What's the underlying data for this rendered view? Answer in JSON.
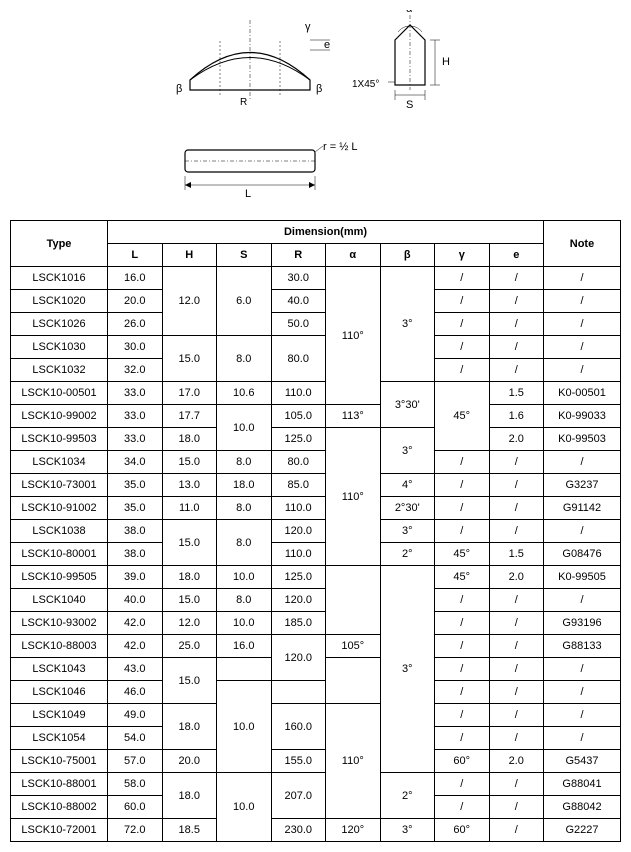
{
  "diagram": {
    "labels": {
      "gamma": "γ",
      "e": "e",
      "beta": "β",
      "R": "R",
      "alpha": "α",
      "H": "H",
      "S": "S",
      "chamfer": "1X45°",
      "r_formula": "r = ½ L",
      "L": "L"
    }
  },
  "table": {
    "header": {
      "type": "Type",
      "dimension": "Dimension(mm)",
      "note": "Note",
      "cols": [
        "L",
        "H",
        "S",
        "R",
        "α",
        "β",
        "γ",
        "e"
      ]
    },
    "rows": [
      {
        "type": "LSCK1016",
        "L": "16.0",
        "H": "",
        "S": "",
        "R": "30.0",
        "a": "",
        "b": "",
        "g": "/",
        "e": "/",
        "note": "/"
      },
      {
        "type": "LSCK1020",
        "L": "20.0",
        "H": "12.0",
        "S": "6.0",
        "R": "40.0",
        "a": "",
        "b": "",
        "g": "/",
        "e": "/",
        "note": "/"
      },
      {
        "type": "LSCK1026",
        "L": "26.0",
        "H": "",
        "S": "",
        "R": "50.0",
        "a": "110°",
        "b": "3°",
        "g": "/",
        "e": "/",
        "note": "/"
      },
      {
        "type": "LSCK1030",
        "L": "30.0",
        "H": "",
        "S": "",
        "R": "",
        "a": "",
        "b": "",
        "g": "/",
        "e": "/",
        "note": "/"
      },
      {
        "type": "LSCK1032",
        "L": "32.0",
        "H": "15.0",
        "S": "8.0",
        "R": "80.0",
        "a": "",
        "b": "",
        "g": "/",
        "e": "/",
        "note": "/"
      },
      {
        "type": "LSCK10-00501",
        "L": "33.0",
        "H": "17.0",
        "S": "10.6",
        "R": "110.0",
        "a": "",
        "b": "3°30'",
        "g": "",
        "e": "1.5",
        "note": "K0-00501"
      },
      {
        "type": "LSCK10-99002",
        "L": "33.0",
        "H": "17.7",
        "S": "",
        "R": "105.0",
        "a": "113°",
        "b": "",
        "g": "45°",
        "e": "1.6",
        "note": "K0-99033"
      },
      {
        "type": "LSCK10-99503",
        "L": "33.0",
        "H": "18.0",
        "S": "10.0",
        "R": "125.0",
        "a": "",
        "b": "3°",
        "g": "",
        "e": "2.0",
        "note": "K0-99503"
      },
      {
        "type": "LSCK1034",
        "L": "34.0",
        "H": "15.0",
        "S": "8.0",
        "R": "80.0",
        "a": "",
        "b": "",
        "g": "/",
        "e": "/",
        "note": "/"
      },
      {
        "type": "LSCK10-73001",
        "L": "35.0",
        "H": "13.0",
        "S": "18.0",
        "R": "85.0",
        "a": "",
        "b": "4°",
        "g": "/",
        "e": "/",
        "note": "G3237"
      },
      {
        "type": "LSCK10-91002",
        "L": "35.0",
        "H": "11.0",
        "S": "8.0",
        "R": "110.0",
        "a": "",
        "b": "2°30'",
        "g": "/",
        "e": "/",
        "note": "G91142"
      },
      {
        "type": "LSCK1038",
        "L": "38.0",
        "H": "",
        "S": "",
        "R": "120.0",
        "a": "110°",
        "b": "3°",
        "g": "/",
        "e": "/",
        "note": "/"
      },
      {
        "type": "LSCK10-80001",
        "L": "38.0",
        "H": "15.0",
        "S": "8.0",
        "R": "110.0",
        "a": "",
        "b": "2°",
        "g": "45°",
        "e": "1.5",
        "note": "G08476"
      },
      {
        "type": "LSCK10-99505",
        "L": "39.0",
        "H": "18.0",
        "S": "10.0",
        "R": "125.0",
        "a": "",
        "b": "",
        "g": "45°",
        "e": "2.0",
        "note": "K0-99505"
      },
      {
        "type": "LSCK1040",
        "L": "40.0",
        "H": "15.0",
        "S": "8.0",
        "R": "120.0",
        "a": "",
        "b": "",
        "g": "/",
        "e": "/",
        "note": "/"
      },
      {
        "type": "LSCK10-93002",
        "L": "42.0",
        "H": "12.0",
        "S": "10.0",
        "R": "185.0",
        "a": "",
        "b": "",
        "g": "/",
        "e": "/",
        "note": "G93196"
      },
      {
        "type": "LSCK10-88003",
        "L": "42.0",
        "H": "25.0",
        "S": "16.0",
        "R": "",
        "a": "105°",
        "b": "",
        "g": "/",
        "e": "/",
        "note": "G88133"
      },
      {
        "type": "LSCK1043",
        "L": "43.0",
        "H": "",
        "S": "",
        "R": "120.0",
        "a": "",
        "b": "3°",
        "g": "/",
        "e": "/",
        "note": "/"
      },
      {
        "type": "LSCK1046",
        "L": "46.0",
        "H": "15.0",
        "S": "",
        "R": "",
        "a": "",
        "b": "",
        "g": "/",
        "e": "/",
        "note": "/"
      },
      {
        "type": "LSCK1049",
        "L": "49.0",
        "H": "",
        "S": "10.0",
        "R": "160.0",
        "a": "",
        "b": "",
        "g": "/",
        "e": "/",
        "note": "/"
      },
      {
        "type": "LSCK1054",
        "L": "54.0",
        "H": "18.0",
        "S": "",
        "R": "",
        "a": "110°",
        "b": "",
        "g": "/",
        "e": "/",
        "note": "/"
      },
      {
        "type": "LSCK10-75001",
        "L": "57.0",
        "H": "20.0",
        "S": "",
        "R": "155.0",
        "a": "",
        "b": "",
        "g": "60°",
        "e": "2.0",
        "note": "G5437"
      },
      {
        "type": "LSCK10-88001",
        "L": "58.0",
        "H": "",
        "S": "",
        "R": "",
        "a": "",
        "b": "2°",
        "g": "/",
        "e": "/",
        "note": "G88041"
      },
      {
        "type": "LSCK10-88002",
        "L": "60.0",
        "H": "18.0",
        "S": "10.0",
        "R": "207.0",
        "a": "",
        "b": "",
        "g": "/",
        "e": "/",
        "note": "G88042"
      },
      {
        "type": "LSCK10-72001",
        "L": "72.0",
        "H": "18.5",
        "S": "",
        "R": "230.0",
        "a": "120°",
        "b": "3°",
        "g": "60°",
        "e": "/",
        "note": "G2227"
      }
    ],
    "merges_H": [
      [
        0,
        2,
        "12.0"
      ],
      [
        3,
        4,
        "15.0"
      ],
      [
        11,
        12,
        "15.0"
      ],
      [
        17,
        18,
        "15.0"
      ],
      [
        19,
        20,
        "18.0"
      ],
      [
        22,
        23,
        "18.0"
      ]
    ],
    "merges_S": [
      [
        0,
        2,
        "6.0"
      ],
      [
        3,
        4,
        "8.0"
      ],
      [
        6,
        7,
        "10.0"
      ],
      [
        11,
        12,
        "8.0"
      ],
      [
        18,
        21,
        "10.0"
      ],
      [
        22,
        24,
        "10.0"
      ]
    ],
    "merges_R": [
      [
        3,
        4,
        "80.0"
      ],
      [
        16,
        17,
        "120.0"
      ],
      [
        19,
        20,
        "160.0"
      ],
      [
        22,
        23,
        "207.0"
      ]
    ],
    "merges_a": [
      [
        0,
        5,
        "110°"
      ],
      [
        7,
        12,
        "110°"
      ],
      [
        13,
        15,
        ""
      ],
      [
        17,
        18,
        ""
      ],
      [
        19,
        23,
        "110°"
      ]
    ],
    "merges_b": [
      [
        0,
        4,
        "3°"
      ],
      [
        5,
        6,
        "3°30'"
      ],
      [
        7,
        8,
        "3°"
      ],
      [
        13,
        21,
        "3°"
      ],
      [
        22,
        23,
        "2°"
      ]
    ],
    "merges_g": [
      [
        5,
        7,
        "45°"
      ]
    ]
  }
}
